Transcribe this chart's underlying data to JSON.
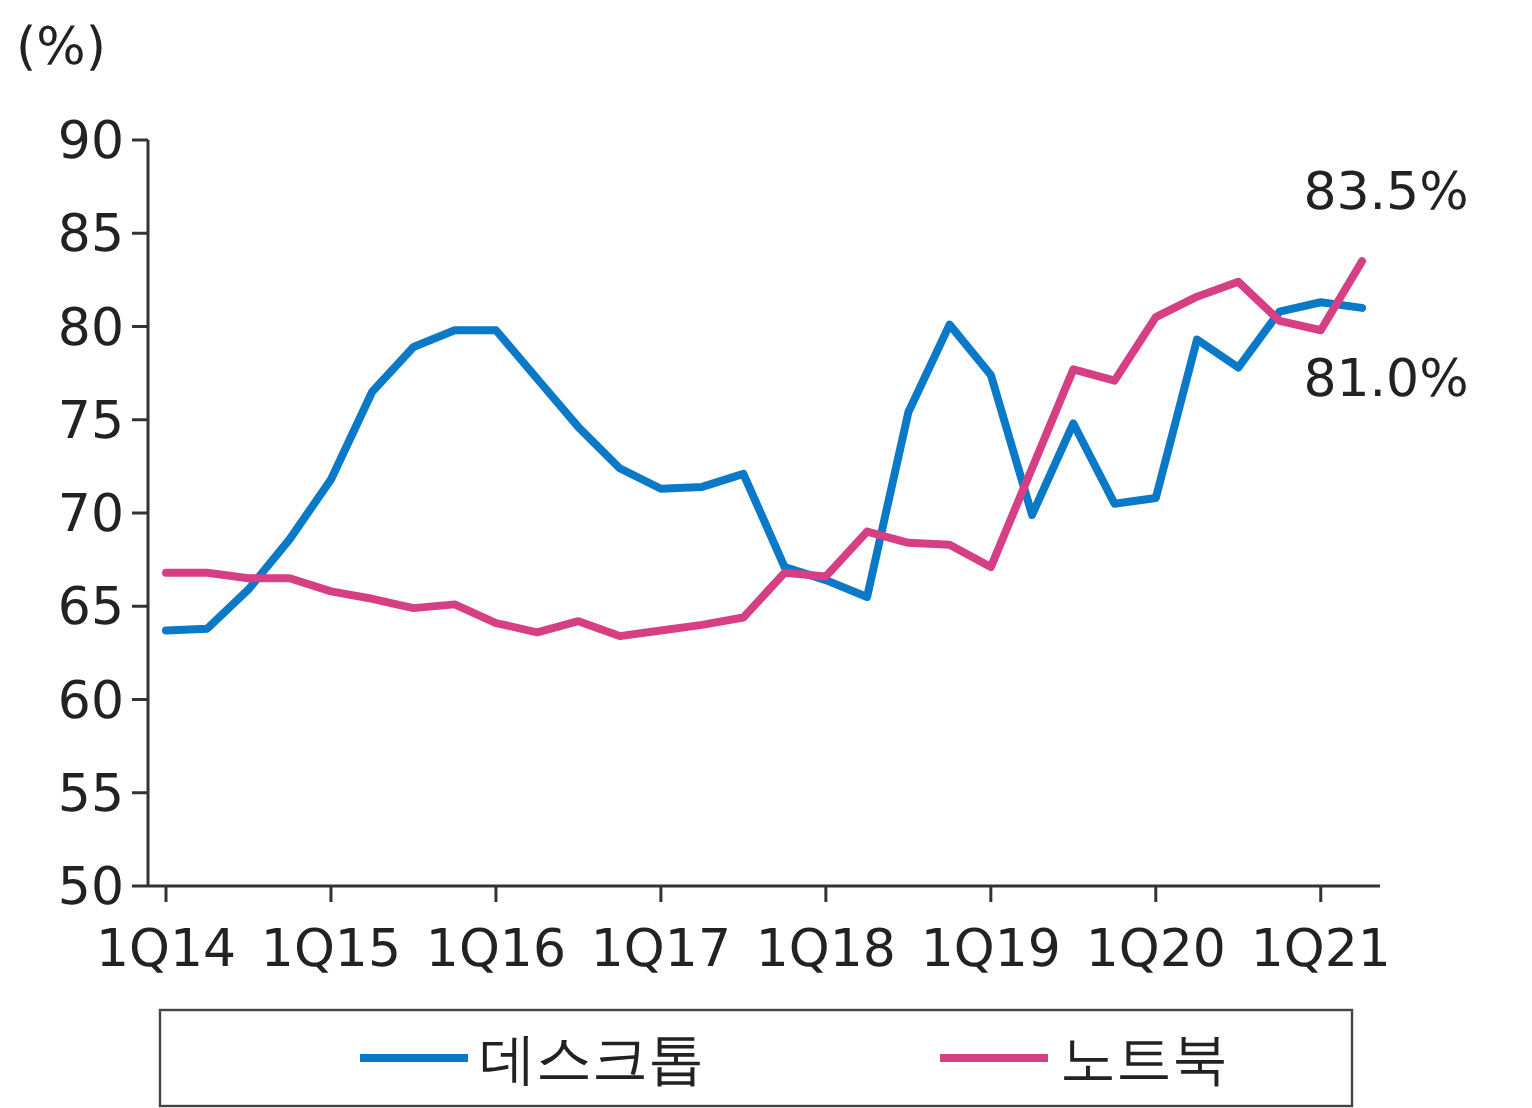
{
  "chart_data": {
    "type": "line",
    "ylabel": "(%)",
    "categories": [
      "1Q14",
      null,
      null,
      null,
      "1Q15",
      null,
      null,
      null,
      "1Q16",
      null,
      null,
      null,
      "1Q17",
      null,
      null,
      null,
      "1Q18",
      null,
      null,
      null,
      "1Q19",
      null,
      null,
      null,
      "1Q20",
      null,
      null,
      null,
      "1Q21",
      null
    ],
    "ylim": [
      50,
      90
    ],
    "yticks": [
      50,
      55,
      60,
      65,
      70,
      75,
      80,
      85,
      90
    ],
    "grid": false,
    "legend": "bottom",
    "line_style": "solid",
    "series": [
      {
        "name": "데스크톱",
        "color": "#0a7ac8",
        "values": [
          63.7,
          63.8,
          65.9,
          68.6,
          71.8,
          76.5,
          78.9,
          79.8,
          79.8,
          77.2,
          74.6,
          72.4,
          71.3,
          71.4,
          72.1,
          67.1,
          66.4,
          65.5,
          75.4,
          80.1,
          77.4,
          69.9,
          74.8,
          70.5,
          70.8,
          79.3,
          77.8,
          80.8,
          81.3,
          81.0
        ],
        "value_labels": [
          null,
          null,
          null,
          null,
          null,
          null,
          null,
          null,
          null,
          null,
          null,
          null,
          null,
          null,
          null,
          null,
          null,
          null,
          null,
          null,
          null,
          null,
          null,
          null,
          null,
          null,
          null,
          null,
          null,
          "81.0%"
        ]
      },
      {
        "name": "노트북",
        "color": "#d63f84",
        "values": [
          66.8,
          66.8,
          66.5,
          66.5,
          65.8,
          65.4,
          64.9,
          65.1,
          64.1,
          63.6,
          64.2,
          63.4,
          63.7,
          64.0,
          64.4,
          66.8,
          66.6,
          69.0,
          68.4,
          68.3,
          67.1,
          72.4,
          77.7,
          77.1,
          80.5,
          81.6,
          82.4,
          80.3,
          79.8,
          83.5
        ],
        "value_labels": [
          null,
          null,
          null,
          null,
          null,
          null,
          null,
          null,
          null,
          null,
          null,
          null,
          null,
          null,
          null,
          null,
          null,
          null,
          null,
          null,
          null,
          null,
          null,
          null,
          null,
          null,
          null,
          null,
          null,
          "83.5%"
        ]
      }
    ]
  }
}
